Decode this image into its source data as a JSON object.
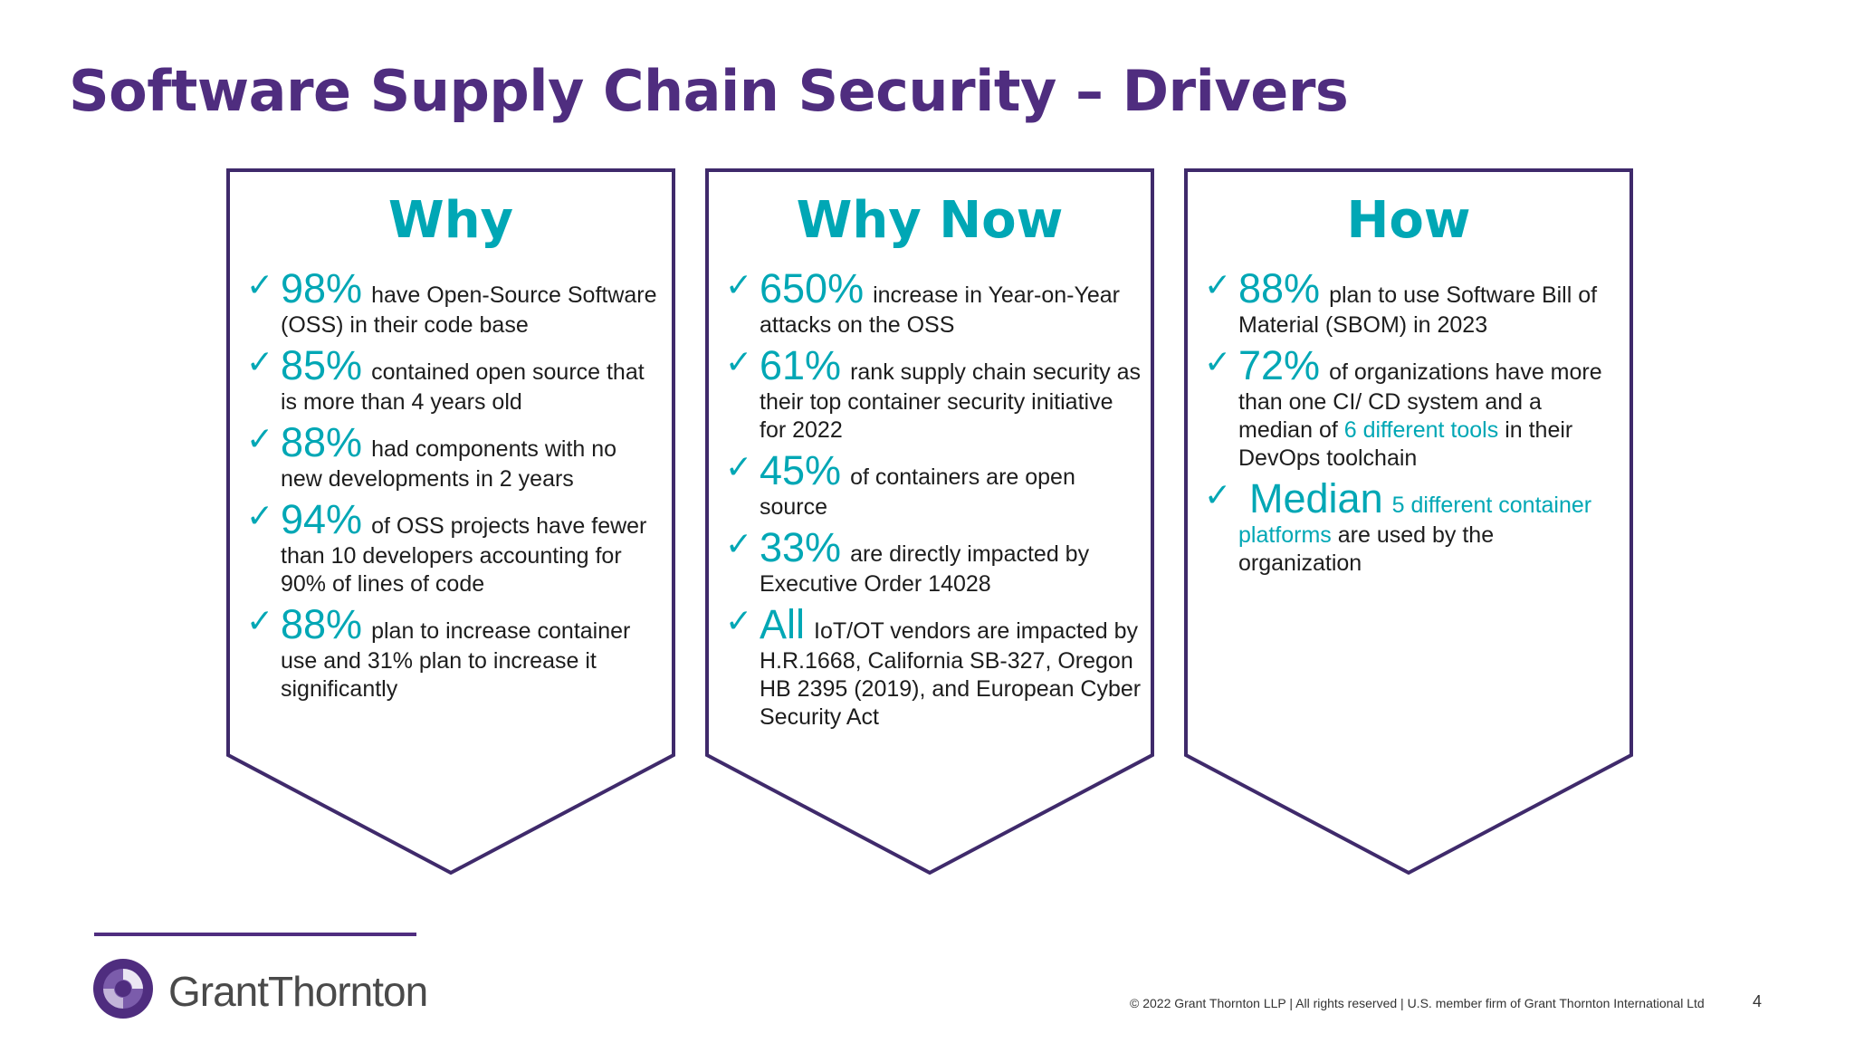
{
  "title": "Software Supply Chain Security – Drivers",
  "columns": [
    {
      "heading": "Why",
      "items": [
        {
          "big": "98%",
          "pre": "have Open-Source Software (OSS) in their code base",
          "hl": "",
          "post": ""
        },
        {
          "big": "85%",
          "pre": "contained open source that is more than 4 years old",
          "hl": "",
          "post": ""
        },
        {
          "big": "88%",
          "pre": "had components with no new developments in 2 years",
          "hl": "",
          "post": ""
        },
        {
          "big": "94%",
          "pre": "of OSS projects have fewer than 10 developers accounting for 90% of lines of code",
          "hl": "",
          "post": ""
        },
        {
          "big": "88%",
          "pre": "plan to increase container use and 31% plan to increase it significantly",
          "hl": "",
          "post": ""
        }
      ]
    },
    {
      "heading": "Why Now",
      "items": [
        {
          "big": "650%",
          "pre": "increase in Year-on-Year attacks on the OSS",
          "hl": "",
          "post": ""
        },
        {
          "big": "61%",
          "pre": "rank supply chain security as their top container security initiative for 2022",
          "hl": "",
          "post": ""
        },
        {
          "big": "45%",
          "pre": "of containers are open source",
          "hl": "",
          "post": ""
        },
        {
          "big": "33%",
          "pre": "are directly impacted by Executive Order 14028",
          "hl": "",
          "post": ""
        },
        {
          "big": "All",
          "pre": "IoT/OT vendors are impacted by H.R.1668, California SB-327, Oregon HB 2395 (2019), and European Cyber Security Act",
          "hl": "",
          "post": ""
        }
      ]
    },
    {
      "heading": "How",
      "items": [
        {
          "big": "88%",
          "pre": "plan to use Software Bill of Material (SBOM) in 2023",
          "hl": "",
          "post": ""
        },
        {
          "big": "72%",
          "pre": "of organizations have more than one CI/ CD system and a median of",
          "hl": "6 different tools",
          "post": "in their DevOps toolchain"
        },
        {
          "big": "Median",
          "pre": "",
          "hl": "5 different container platforms",
          "post": "are used by the organization"
        }
      ]
    }
  ],
  "footer": {
    "brand": "GrantThornton",
    "copyright": "© 2022 Grant Thornton LLP  |  All rights reserved  | U.S. member firm of Grant Thornton International Ltd",
    "page_number": "4"
  },
  "colors": {
    "purple": "#4f2d7f",
    "teal": "#00a7b5"
  },
  "icons": [
    "check-icon",
    "grant-thornton-logo-icon"
  ]
}
